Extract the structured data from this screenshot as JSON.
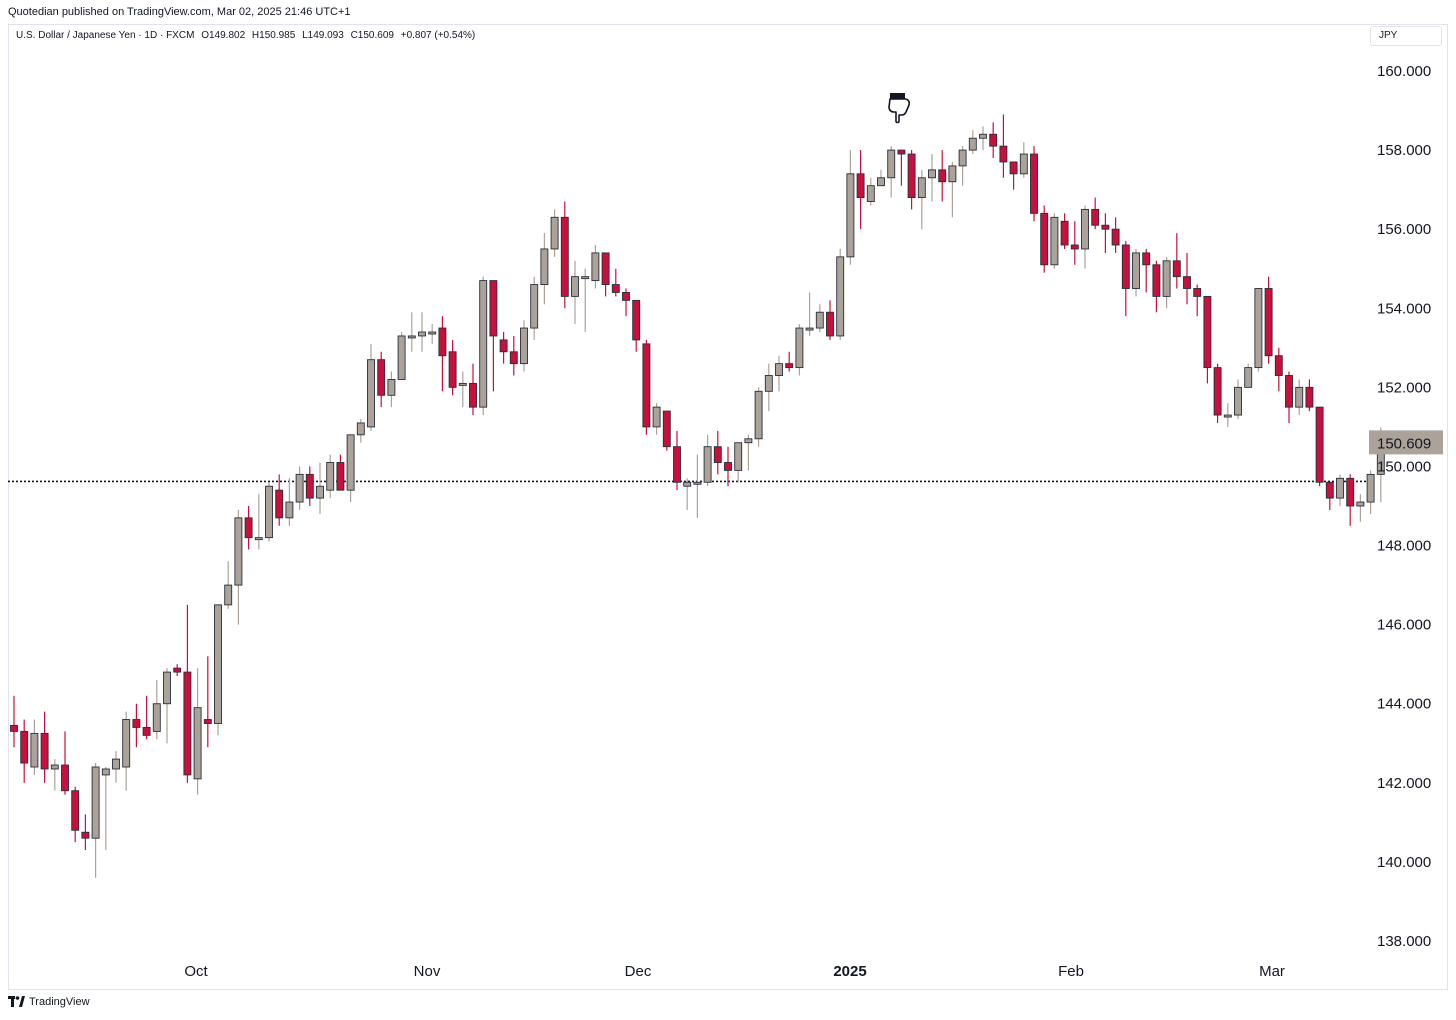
{
  "header": {
    "publisher": "Quotedian published on TradingView.com, Mar 02, 2025 21:46 UTC+1"
  },
  "legend": {
    "symbol": "U.S. Dollar / Japanese Yen · 1D · FXCM",
    "open": "O149.802",
    "high": "H150.985",
    "low": "L149.093",
    "close": "C150.609",
    "change": "+0.807 (+0.54%)"
  },
  "currency_label": "JPY",
  "last_price_label": "150.609",
  "footer": {
    "brand": "TradingView"
  },
  "colors": {
    "up": "#aba39a",
    "down": "#c8103d",
    "outline": "#2a2e39",
    "grid": "#e0e3eb",
    "price_label_bg": "#aba39a"
  },
  "icons": {
    "annotation": "pointing-hand-icon",
    "logo": "tradingview-logo-icon"
  },
  "chart_data": {
    "type": "candlestick",
    "y_axis_ticks": [
      "160.000",
      "158.000",
      "156.000",
      "154.000",
      "152.000",
      "150.000",
      "148.000",
      "146.000",
      "144.000",
      "142.000",
      "140.000",
      "138.000"
    ],
    "y_range": [
      137.5,
      161.0
    ],
    "x_axis_ticks": [
      "Oct",
      "Nov",
      "Dec",
      "2025",
      "Feb",
      "Mar"
    ],
    "reference_line": 149.62,
    "last_close": 150.609,
    "candles": [
      [
        143.45,
        143.3,
        144.2,
        142.9
      ],
      [
        143.3,
        142.5,
        143.6,
        142.0
      ],
      [
        142.4,
        143.25,
        143.6,
        142.2
      ],
      [
        143.25,
        142.35,
        143.8,
        142.0
      ],
      [
        142.35,
        142.45,
        142.6,
        141.8
      ],
      [
        142.45,
        141.8,
        143.3,
        141.7
      ],
      [
        141.8,
        140.8,
        141.9,
        140.5
      ],
      [
        140.75,
        140.6,
        141.2,
        140.3
      ],
      [
        140.6,
        142.4,
        142.5,
        139.6
      ],
      [
        142.2,
        142.35,
        142.4,
        140.3
      ],
      [
        142.35,
        142.6,
        142.8,
        142.0
      ],
      [
        142.4,
        143.6,
        143.8,
        141.8
      ],
      [
        143.6,
        143.4,
        144.0,
        142.9
      ],
      [
        143.4,
        143.2,
        144.2,
        143.1
      ],
      [
        143.3,
        144.0,
        144.6,
        143.1
      ],
      [
        144.0,
        144.8,
        144.9,
        143.0
      ],
      [
        144.9,
        144.8,
        145.0,
        144.7
      ],
      [
        144.8,
        142.2,
        146.5,
        142.0
      ],
      [
        142.1,
        143.9,
        144.9,
        141.7
      ],
      [
        143.6,
        143.5,
        145.2,
        142.9
      ],
      [
        143.5,
        146.5,
        146.5,
        143.2
      ],
      [
        146.5,
        147.0,
        147.6,
        146.4
      ],
      [
        147.0,
        148.7,
        148.9,
        146.0
      ],
      [
        148.7,
        148.2,
        149.0,
        147.9
      ],
      [
        148.2,
        148.2,
        149.3,
        147.9
      ],
      [
        148.2,
        149.5,
        149.6,
        148.1
      ],
      [
        149.4,
        148.7,
        149.8,
        148.5
      ],
      [
        148.7,
        149.1,
        149.7,
        148.5
      ],
      [
        149.1,
        149.8,
        150.0,
        148.9
      ],
      [
        149.8,
        149.2,
        150.0,
        149.0
      ],
      [
        149.2,
        149.5,
        150.1,
        148.8
      ],
      [
        149.4,
        150.1,
        150.3,
        149.2
      ],
      [
        150.1,
        149.4,
        150.3,
        149.4
      ],
      [
        149.4,
        150.8,
        150.8,
        149.1
      ],
      [
        150.8,
        151.1,
        151.2,
        150.6
      ],
      [
        151.0,
        152.7,
        153.1,
        150.9
      ],
      [
        152.7,
        151.8,
        152.9,
        151.5
      ],
      [
        151.8,
        152.2,
        152.4,
        151.5
      ],
      [
        152.2,
        153.3,
        153.4,
        152.3
      ],
      [
        153.3,
        153.3,
        153.9,
        152.9
      ],
      [
        153.3,
        153.4,
        153.9,
        152.9
      ],
      [
        153.4,
        153.4,
        153.6,
        153.1
      ],
      [
        153.5,
        152.8,
        153.8,
        151.9
      ],
      [
        152.9,
        152.0,
        153.2,
        151.8
      ],
      [
        152.1,
        152.1,
        152.4,
        151.5
      ],
      [
        152.1,
        151.5,
        152.6,
        151.3
      ],
      [
        151.5,
        154.7,
        154.8,
        151.3
      ],
      [
        154.7,
        153.3,
        154.7,
        151.9
      ],
      [
        153.2,
        152.9,
        153.4,
        152.6
      ],
      [
        152.9,
        152.6,
        153.3,
        152.3
      ],
      [
        152.6,
        153.5,
        153.7,
        152.4
      ],
      [
        153.5,
        154.6,
        154.8,
        153.2
      ],
      [
        154.6,
        155.5,
        155.9,
        154.1
      ],
      [
        155.5,
        156.3,
        156.5,
        155.3
      ],
      [
        156.3,
        154.3,
        156.7,
        154.0
      ],
      [
        154.3,
        154.8,
        155.2,
        153.6
      ],
      [
        154.8,
        154.8,
        155.0,
        153.4
      ],
      [
        154.7,
        155.4,
        155.6,
        154.5
      ],
      [
        155.4,
        154.6,
        155.4,
        154.3
      ],
      [
        154.6,
        154.4,
        155.0,
        154.3
      ],
      [
        154.4,
        154.2,
        154.5,
        153.8
      ],
      [
        154.2,
        153.2,
        154.2,
        152.9
      ],
      [
        153.1,
        151.0,
        153.2,
        150.8
      ],
      [
        151.0,
        151.5,
        151.6,
        150.8
      ],
      [
        151.4,
        150.5,
        151.4,
        150.4
      ],
      [
        150.5,
        149.6,
        150.9,
        149.4
      ],
      [
        149.5,
        149.6,
        149.7,
        148.9
      ],
      [
        149.6,
        149.6,
        150.3,
        148.7
      ],
      [
        149.6,
        150.5,
        150.8,
        149.5
      ],
      [
        150.5,
        150.1,
        150.9,
        149.8
      ],
      [
        150.1,
        149.9,
        150.5,
        149.5
      ],
      [
        149.9,
        150.6,
        150.6,
        149.6
      ],
      [
        150.6,
        150.7,
        150.8,
        149.9
      ],
      [
        150.7,
        151.9,
        152.0,
        150.5
      ],
      [
        151.9,
        152.3,
        152.6,
        151.4
      ],
      [
        152.3,
        152.6,
        152.8,
        151.9
      ],
      [
        152.6,
        152.5,
        152.9,
        152.4
      ],
      [
        152.5,
        153.5,
        153.6,
        152.3
      ],
      [
        153.5,
        153.5,
        154.4,
        153.3
      ],
      [
        153.5,
        153.9,
        154.1,
        153.4
      ],
      [
        153.9,
        153.3,
        154.2,
        153.2
      ],
      [
        153.3,
        155.3,
        155.5,
        153.2
      ],
      [
        155.3,
        157.4,
        158.0,
        155.1
      ],
      [
        157.4,
        156.8,
        158.0,
        156.0
      ],
      [
        156.7,
        157.1,
        157.3,
        156.6
      ],
      [
        157.1,
        157.3,
        157.5,
        157.2
      ],
      [
        157.3,
        158.0,
        158.1,
        156.8
      ],
      [
        158.0,
        157.9,
        158.0,
        157.1
      ],
      [
        157.9,
        156.8,
        158.0,
        156.5
      ],
      [
        156.8,
        157.3,
        157.5,
        156.0
      ],
      [
        157.3,
        157.5,
        157.9,
        156.7
      ],
      [
        157.5,
        157.2,
        158.0,
        156.7
      ],
      [
        157.2,
        157.6,
        157.7,
        156.3
      ],
      [
        157.6,
        158.0,
        158.1,
        157.1
      ],
      [
        158.0,
        158.3,
        158.5,
        157.9
      ],
      [
        158.3,
        158.4,
        158.6,
        158.0
      ],
      [
        158.4,
        158.1,
        158.7,
        157.8
      ],
      [
        158.1,
        157.7,
        158.9,
        157.3
      ],
      [
        157.7,
        157.4,
        157.6,
        157.0
      ],
      [
        157.4,
        157.9,
        158.2,
        157.3
      ],
      [
        157.9,
        156.4,
        158.1,
        156.2
      ],
      [
        156.4,
        155.1,
        156.6,
        154.9
      ],
      [
        155.1,
        156.3,
        156.4,
        155.0
      ],
      [
        156.2,
        155.6,
        156.4,
        155.5
      ],
      [
        155.6,
        155.5,
        156.2,
        155.1
      ],
      [
        155.5,
        156.5,
        156.6,
        155.0
      ],
      [
        156.5,
        156.1,
        156.8,
        156.0
      ],
      [
        156.1,
        156.0,
        156.4,
        155.4
      ],
      [
        156.0,
        155.6,
        156.3,
        155.4
      ],
      [
        155.6,
        154.5,
        155.7,
        153.8
      ],
      [
        154.5,
        155.4,
        155.5,
        154.3
      ],
      [
        155.4,
        155.1,
        155.5,
        154.4
      ],
      [
        155.1,
        154.3,
        155.2,
        153.9
      ],
      [
        154.3,
        155.2,
        155.3,
        154.0
      ],
      [
        155.2,
        154.8,
        155.9,
        154.5
      ],
      [
        154.8,
        154.5,
        155.4,
        154.1
      ],
      [
        154.5,
        154.3,
        154.6,
        153.8
      ],
      [
        154.3,
        152.5,
        154.3,
        152.1
      ],
      [
        152.5,
        151.3,
        152.6,
        151.1
      ],
      [
        151.3,
        151.3,
        151.6,
        151.0
      ],
      [
        151.3,
        152.0,
        152.2,
        151.2
      ],
      [
        152.0,
        152.5,
        152.6,
        152.3
      ],
      [
        152.5,
        154.5,
        154.5,
        152.4
      ],
      [
        154.5,
        152.8,
        154.8,
        152.6
      ],
      [
        152.8,
        152.3,
        153.0,
        151.9
      ],
      [
        152.3,
        151.5,
        152.4,
        151.1
      ],
      [
        151.5,
        152.0,
        152.2,
        151.3
      ],
      [
        152.0,
        151.5,
        152.2,
        151.4
      ],
      [
        151.5,
        149.6,
        151.5,
        149.5
      ],
      [
        149.6,
        149.2,
        149.6,
        148.9
      ],
      [
        149.2,
        149.7,
        149.8,
        149.0
      ],
      [
        149.7,
        149.0,
        149.8,
        148.5
      ],
      [
        149.0,
        149.1,
        149.3,
        148.6
      ],
      [
        149.1,
        149.8,
        149.9,
        148.8
      ],
      [
        149.8,
        150.6,
        150.985,
        149.093
      ]
    ]
  }
}
